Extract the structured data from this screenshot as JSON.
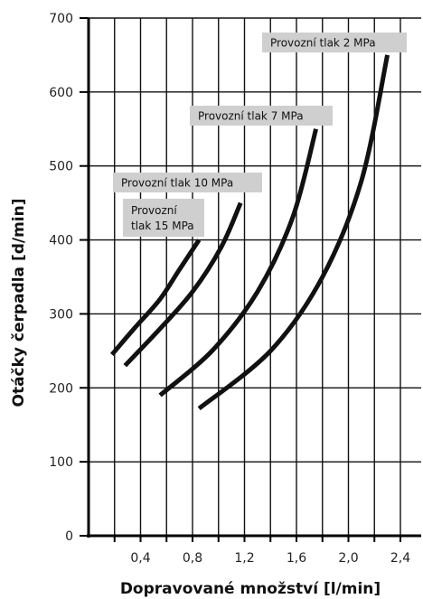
{
  "chart_data": {
    "type": "line",
    "title": "",
    "xlabel": "Dopravované množství  [l/min]",
    "ylabel": "Otáčky čerpadla  [d/min]",
    "xlim": [
      0,
      2.56
    ],
    "ylim": [
      0,
      700
    ],
    "x_ticks": [
      "0,4",
      "0,8",
      "1,2",
      "1,6",
      "2,0",
      "2,4"
    ],
    "x_tick_values": [
      0.4,
      0.8,
      1.2,
      1.6,
      2.0,
      2.4
    ],
    "y_ticks": [
      "0",
      "100",
      "200",
      "300",
      "400",
      "500",
      "600",
      "700"
    ],
    "y_tick_values": [
      0,
      100,
      200,
      300,
      400,
      500,
      600,
      700
    ],
    "x_grid_step": 0.2,
    "y_grid_step": 100,
    "grid": true,
    "series": [
      {
        "name": "Provozní tlak 15 MPa",
        "label_lines": [
          "Provozní",
          "tlak 15 MPa"
        ],
        "points": [
          [
            0.18,
            245
          ],
          [
            0.35,
            280
          ],
          [
            0.55,
            320
          ],
          [
            0.7,
            360
          ],
          [
            0.85,
            400
          ]
        ]
      },
      {
        "name": "Provozní tlak 10 MPa",
        "label_lines": [
          "Provozní tlak 10 MPa"
        ],
        "points": [
          [
            0.28,
            230
          ],
          [
            0.55,
            280
          ],
          [
            0.8,
            330
          ],
          [
            1.02,
            390
          ],
          [
            1.17,
            450
          ]
        ]
      },
      {
        "name": "Provozní tlak 7 MPa",
        "label_lines": [
          "Provozní tlak 7 MPa"
        ],
        "points": [
          [
            0.55,
            190
          ],
          [
            0.95,
            250
          ],
          [
            1.3,
            330
          ],
          [
            1.57,
            430
          ],
          [
            1.75,
            550
          ]
        ]
      },
      {
        "name": "Provozní tlak 2 MPa",
        "label_lines": [
          "Provozní tlak 2 MPa"
        ],
        "points": [
          [
            0.85,
            172
          ],
          [
            1.4,
            250
          ],
          [
            1.8,
            350
          ],
          [
            2.1,
            480
          ],
          [
            2.3,
            650
          ]
        ]
      }
    ],
    "colors": {
      "line": "#111111",
      "label_box": "#cfcfcf",
      "grid": "#111111"
    }
  }
}
